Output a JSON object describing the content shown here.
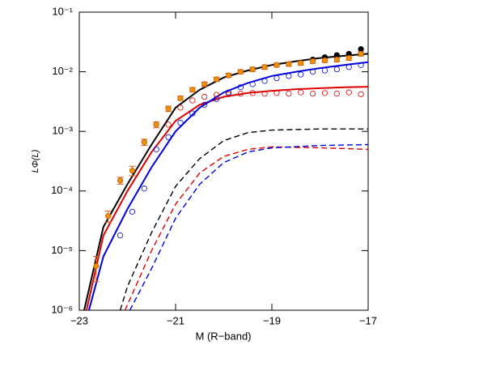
{
  "chart_data": {
    "type": "line",
    "xlabel": "M (R−band)",
    "ylabel": "LΦ(L)",
    "log_y": true,
    "xlim": [
      -23,
      -17
    ],
    "ylim": [
      1e-06,
      0.1
    ],
    "xticks": [
      {
        "value": -23,
        "label": "−23"
      },
      {
        "value": -21,
        "label": "−21"
      },
      {
        "value": -19,
        "label": "−19"
      },
      {
        "value": -17,
        "label": "−17"
      }
    ],
    "yticks": [
      {
        "value": 1e-06,
        "label": "10⁻⁶"
      },
      {
        "value": 1e-05,
        "label": "10⁻⁵"
      },
      {
        "value": 0.0001,
        "label": "10⁻⁴"
      },
      {
        "value": 0.001,
        "label": "10⁻³"
      },
      {
        "value": 0.01,
        "label": "10⁻²"
      },
      {
        "value": 0.1,
        "label": "10⁻¹"
      }
    ],
    "series": [
      {
        "color": "#000000",
        "style": "solid",
        "x": [
          -22.9,
          -22.5,
          -22,
          -21.5,
          -21,
          -20.5,
          -20,
          -19.5,
          -19,
          -18.5,
          -18,
          -17.5,
          -17
        ],
        "values": [
          1e-06,
          2.5e-05,
          0.00013,
          0.0006,
          0.0025,
          0.005,
          0.008,
          0.0105,
          0.013,
          0.015,
          0.017,
          0.0185,
          0.02
        ]
      },
      {
        "color": "#e00000",
        "style": "solid",
        "x": [
          -22.85,
          -22.5,
          -22,
          -21.5,
          -21,
          -20.5,
          -20,
          -19.5,
          -19,
          -18.5,
          -18,
          -17.5,
          -17
        ],
        "values": [
          1e-06,
          1.8e-05,
          0.0001,
          0.00045,
          0.0015,
          0.0028,
          0.0038,
          0.0044,
          0.0048,
          0.0051,
          0.0053,
          0.0055,
          0.0056
        ]
      },
      {
        "color": "#0000e0",
        "style": "solid",
        "x": [
          -22.8,
          -22.5,
          -22,
          -21.5,
          -21,
          -20.5,
          -20,
          -19.5,
          -19,
          -18.5,
          -18,
          -17.5,
          -17
        ],
        "values": [
          1e-06,
          8e-06,
          5e-05,
          0.00025,
          0.001,
          0.0025,
          0.0045,
          0.0065,
          0.0085,
          0.01,
          0.0115,
          0.013,
          0.0145
        ]
      },
      {
        "color": "#000000",
        "style": "dashed",
        "x": [
          -22.15,
          -22,
          -21.5,
          -21,
          -20.5,
          -20,
          -19.5,
          -19,
          -18,
          -17
        ],
        "values": [
          1e-06,
          2.5e-06,
          2e-05,
          0.00012,
          0.00035,
          0.0007,
          0.00095,
          0.00105,
          0.0011,
          0.0011
        ]
      },
      {
        "color": "#e00000",
        "style": "dashed",
        "x": [
          -22.05,
          -21.5,
          -21,
          -20.5,
          -20,
          -19.5,
          -19,
          -18,
          -17
        ],
        "values": [
          1e-06,
          1e-05,
          6e-05,
          0.0002,
          0.00038,
          0.0005,
          0.00055,
          0.00053,
          0.0005
        ]
      },
      {
        "color": "#0000e0",
        "style": "dashed",
        "x": [
          -21.95,
          -21.5,
          -21,
          -20.5,
          -20,
          -19.5,
          -19,
          -18,
          -17
        ],
        "values": [
          1e-06,
          5e-06,
          3.5e-05,
          0.00013,
          0.0003,
          0.00045,
          0.00053,
          0.00058,
          0.0006
        ]
      },
      {
        "color": "#e00000",
        "marker": "open",
        "x": [
          -21.15,
          -20.9,
          -20.65,
          -20.4,
          -20.15,
          -19.9,
          -19.65,
          -19.4,
          -19.15,
          -18.9,
          -18.65,
          -18.4,
          -18.15,
          -17.9,
          -17.65,
          -17.4,
          -17.15
        ],
        "values": [
          0.0013,
          0.0025,
          0.0033,
          0.0038,
          0.0041,
          0.0042,
          0.0043,
          0.0044,
          0.0043,
          0.0044,
          0.0043,
          0.0045,
          0.0043,
          0.0044,
          0.0043,
          0.0045,
          0.0042
        ]
      },
      {
        "color": "#0000e0",
        "marker": "open",
        "x": [
          -22.15,
          -21.9,
          -21.65,
          -21.4,
          -21.15,
          -20.9,
          -20.65,
          -20.4,
          -20.15,
          -19.9,
          -19.65,
          -19.4,
          -19.15,
          -18.9,
          -18.65,
          -18.4,
          -18.15,
          -17.9,
          -17.65,
          -17.4,
          -17.15
        ],
        "values": [
          1.8e-05,
          4.5e-05,
          0.00011,
          0.0005,
          0.0008,
          0.0014,
          0.002,
          0.0028,
          0.0035,
          0.0045,
          0.0055,
          0.0062,
          0.007,
          0.0078,
          0.0085,
          0.009,
          0.01,
          0.0105,
          0.011,
          0.012,
          0.013
        ]
      },
      {
        "color": "#000000",
        "marker": "filled",
        "x": [
          -18.15,
          -17.9,
          -17.65,
          -17.4,
          -17.15
        ],
        "values": [
          0.016,
          0.0175,
          0.019,
          0.02,
          0.024
        ]
      },
      {
        "color": "#f0900a",
        "marker": "filled",
        "x": [
          -22.65,
          -22.4,
          -22.15,
          -21.9,
          -21.65,
          -21.4,
          -21.15,
          -20.9,
          -20.65,
          -20.4,
          -20.15,
          -19.9,
          -19.65,
          -19.4,
          -19.15,
          -18.9,
          -18.65,
          -18.4,
          -18.15,
          -17.9,
          -17.65,
          -17.4,
          -17.15
        ],
        "values": [
          5.5e-06,
          3.8e-05,
          0.00015,
          0.00022,
          0.00066,
          0.0013,
          0.0024,
          0.0036,
          0.005,
          0.0062,
          0.0075,
          0.0087,
          0.01,
          0.011,
          0.012,
          0.013,
          0.0135,
          0.014,
          0.015,
          0.0155,
          0.016,
          0.017,
          0.02
        ],
        "errors": [
          2.5e-06,
          8e-06,
          2e-05,
          4e-05,
          8e-05,
          0.00015,
          0.00025,
          0.0003,
          0.0004,
          0.0005,
          0.0006,
          0.0007,
          0.0008,
          0.0009,
          0.001,
          0.001,
          0.0011,
          0.0011,
          0.0012,
          0.0012,
          0.0013,
          0.0014,
          0.0016
        ]
      }
    ]
  }
}
